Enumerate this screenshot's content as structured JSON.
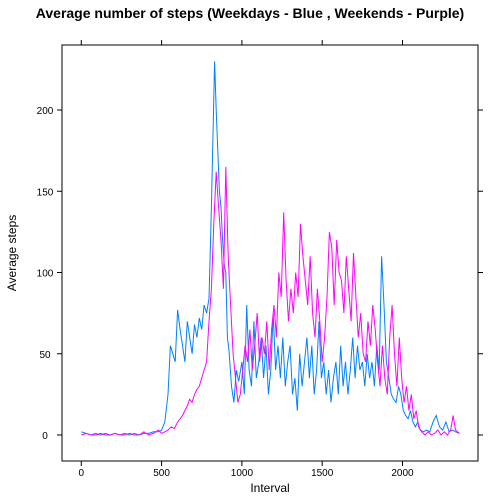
{
  "chart_data": {
    "type": "line",
    "title": "Average number of steps (Weekdays - Blue , Weekends - Purple)",
    "xlabel": "Interval",
    "ylabel": "Average steps",
    "xlim": [
      -120,
      2470
    ],
    "ylim": [
      -16,
      240
    ],
    "x_ticks": [
      0,
      500,
      1000,
      1500,
      2000
    ],
    "y_ticks": [
      0,
      50,
      100,
      150,
      200
    ],
    "grid": false,
    "legend": "none",
    "series": [
      {
        "color": "#0080ff",
        "points": [
          [
            0,
            2
          ],
          [
            30,
            1
          ],
          [
            60,
            0
          ],
          [
            90,
            1
          ],
          [
            120,
            0
          ],
          [
            150,
            1
          ],
          [
            180,
            0
          ],
          [
            210,
            1
          ],
          [
            240,
            0
          ],
          [
            270,
            1
          ],
          [
            300,
            0
          ],
          [
            330,
            1
          ],
          [
            360,
            0
          ],
          [
            390,
            1
          ],
          [
            420,
            1
          ],
          [
            450,
            2
          ],
          [
            480,
            2
          ],
          [
            500,
            3
          ],
          [
            520,
            8
          ],
          [
            540,
            25
          ],
          [
            555,
            55
          ],
          [
            570,
            50
          ],
          [
            585,
            45
          ],
          [
            600,
            77
          ],
          [
            615,
            65
          ],
          [
            630,
            55
          ],
          [
            645,
            45
          ],
          [
            660,
            70
          ],
          [
            675,
            60
          ],
          [
            690,
            50
          ],
          [
            705,
            68
          ],
          [
            720,
            60
          ],
          [
            735,
            72
          ],
          [
            750,
            65
          ],
          [
            765,
            80
          ],
          [
            780,
            75
          ],
          [
            795,
            84
          ],
          [
            810,
            140
          ],
          [
            820,
            185
          ],
          [
            830,
            230
          ],
          [
            840,
            200
          ],
          [
            850,
            175
          ],
          [
            860,
            150
          ],
          [
            870,
            140
          ],
          [
            880,
            120
          ],
          [
            890,
            105
          ],
          [
            900,
            100
          ],
          [
            910,
            60
          ],
          [
            920,
            52
          ],
          [
            935,
            30
          ],
          [
            950,
            20
          ],
          [
            965,
            40
          ],
          [
            980,
            33
          ],
          [
            1000,
            45
          ],
          [
            1015,
            25
          ],
          [
            1030,
            80
          ],
          [
            1045,
            40
          ],
          [
            1060,
            30
          ],
          [
            1075,
            70
          ],
          [
            1090,
            35
          ],
          [
            1105,
            45
          ],
          [
            1120,
            60
          ],
          [
            1135,
            35
          ],
          [
            1150,
            55
          ],
          [
            1165,
            25
          ],
          [
            1180,
            40
          ],
          [
            1195,
            75
          ],
          [
            1210,
            40
          ],
          [
            1225,
            55
          ],
          [
            1240,
            35
          ],
          [
            1255,
            60
          ],
          [
            1270,
            30
          ],
          [
            1285,
            45
          ],
          [
            1300,
            55
          ],
          [
            1315,
            25
          ],
          [
            1330,
            35
          ],
          [
            1345,
            15
          ],
          [
            1360,
            50
          ],
          [
            1375,
            30
          ],
          [
            1390,
            45
          ],
          [
            1405,
            60
          ],
          [
            1420,
            35
          ],
          [
            1435,
            55
          ],
          [
            1450,
            25
          ],
          [
            1465,
            40
          ],
          [
            1480,
            70
          ],
          [
            1495,
            35
          ],
          [
            1510,
            45
          ],
          [
            1525,
            25
          ],
          [
            1540,
            40
          ],
          [
            1555,
            20
          ],
          [
            1570,
            35
          ],
          [
            1585,
            45
          ],
          [
            1600,
            25
          ],
          [
            1615,
            55
          ],
          [
            1630,
            30
          ],
          [
            1645,
            45
          ],
          [
            1660,
            25
          ],
          [
            1675,
            40
          ],
          [
            1690,
            60
          ],
          [
            1705,
            35
          ],
          [
            1720,
            55
          ],
          [
            1735,
            40
          ],
          [
            1750,
            45
          ],
          [
            1765,
            30
          ],
          [
            1780,
            50
          ],
          [
            1795,
            35
          ],
          [
            1810,
            45
          ],
          [
            1825,
            30
          ],
          [
            1840,
            55
          ],
          [
            1855,
            40
          ],
          [
            1870,
            110
          ],
          [
            1885,
            80
          ],
          [
            1900,
            45
          ],
          [
            1915,
            35
          ],
          [
            1930,
            25
          ],
          [
            1945,
            22
          ],
          [
            1960,
            20
          ],
          [
            1975,
            30
          ],
          [
            1990,
            25
          ],
          [
            2005,
            15
          ],
          [
            2020,
            12
          ],
          [
            2035,
            10
          ],
          [
            2050,
            15
          ],
          [
            2065,
            8
          ],
          [
            2080,
            5
          ],
          [
            2095,
            8
          ],
          [
            2110,
            3
          ],
          [
            2130,
            2
          ],
          [
            2150,
            3
          ],
          [
            2170,
            2
          ],
          [
            2190,
            8
          ],
          [
            2210,
            12
          ],
          [
            2230,
            5
          ],
          [
            2250,
            3
          ],
          [
            2270,
            8
          ],
          [
            2290,
            2
          ],
          [
            2310,
            3
          ],
          [
            2330,
            2
          ],
          [
            2355,
            1
          ]
        ]
      },
      {
        "color": "#ff00ff",
        "points": [
          [
            0,
            0
          ],
          [
            30,
            1
          ],
          [
            60,
            0
          ],
          [
            90,
            0
          ],
          [
            120,
            1
          ],
          [
            150,
            0
          ],
          [
            180,
            0
          ],
          [
            210,
            1
          ],
          [
            240,
            0
          ],
          [
            270,
            0
          ],
          [
            300,
            1
          ],
          [
            330,
            0
          ],
          [
            360,
            0
          ],
          [
            390,
            2
          ],
          [
            420,
            0
          ],
          [
            450,
            1
          ],
          [
            480,
            3
          ],
          [
            500,
            1
          ],
          [
            520,
            2
          ],
          [
            540,
            3
          ],
          [
            560,
            5
          ],
          [
            580,
            4
          ],
          [
            600,
            8
          ],
          [
            615,
            10
          ],
          [
            630,
            12
          ],
          [
            645,
            15
          ],
          [
            660,
            18
          ],
          [
            675,
            22
          ],
          [
            690,
            20
          ],
          [
            705,
            25
          ],
          [
            720,
            28
          ],
          [
            735,
            30
          ],
          [
            750,
            35
          ],
          [
            765,
            40
          ],
          [
            780,
            45
          ],
          [
            795,
            70
          ],
          [
            810,
            90
          ],
          [
            825,
            130
          ],
          [
            840,
            162
          ],
          [
            855,
            140
          ],
          [
            870,
            120
          ],
          [
            885,
            90
          ],
          [
            900,
            165
          ],
          [
            915,
            110
          ],
          [
            930,
            80
          ],
          [
            945,
            50
          ],
          [
            960,
            35
          ],
          [
            975,
            20
          ],
          [
            990,
            25
          ],
          [
            1005,
            40
          ],
          [
            1020,
            55
          ],
          [
            1035,
            45
          ],
          [
            1050,
            65
          ],
          [
            1065,
            40
          ],
          [
            1080,
            55
          ],
          [
            1095,
            75
          ],
          [
            1110,
            45
          ],
          [
            1125,
            60
          ],
          [
            1140,
            50
          ],
          [
            1155,
            70
          ],
          [
            1170,
            40
          ],
          [
            1185,
            65
          ],
          [
            1200,
            80
          ],
          [
            1215,
            60
          ],
          [
            1230,
            100
          ],
          [
            1245,
            85
          ],
          [
            1260,
            137
          ],
          [
            1275,
            95
          ],
          [
            1290,
            70
          ],
          [
            1305,
            90
          ],
          [
            1320,
            75
          ],
          [
            1335,
            100
          ],
          [
            1350,
            85
          ],
          [
            1365,
            130
          ],
          [
            1380,
            110
          ],
          [
            1395,
            95
          ],
          [
            1410,
            80
          ],
          [
            1425,
            110
          ],
          [
            1440,
            75
          ],
          [
            1455,
            60
          ],
          [
            1470,
            90
          ],
          [
            1485,
            70
          ],
          [
            1500,
            45
          ],
          [
            1515,
            60
          ],
          [
            1530,
            85
          ],
          [
            1545,
            125
          ],
          [
            1560,
            115
          ],
          [
            1575,
            80
          ],
          [
            1590,
            120
          ],
          [
            1605,
            100
          ],
          [
            1620,
            95
          ],
          [
            1635,
            75
          ],
          [
            1650,
            110
          ],
          [
            1665,
            90
          ],
          [
            1680,
            70
          ],
          [
            1695,
            112
          ],
          [
            1710,
            85
          ],
          [
            1725,
            60
          ],
          [
            1740,
            75
          ],
          [
            1755,
            50
          ],
          [
            1770,
            45
          ],
          [
            1785,
            70
          ],
          [
            1800,
            55
          ],
          [
            1815,
            80
          ],
          [
            1830,
            65
          ],
          [
            1845,
            45
          ],
          [
            1860,
            30
          ],
          [
            1875,
            55
          ],
          [
            1890,
            35
          ],
          [
            1905,
            25
          ],
          [
            1920,
            60
          ],
          [
            1935,
            80
          ],
          [
            1950,
            50
          ],
          [
            1965,
            30
          ],
          [
            1980,
            60
          ],
          [
            1995,
            35
          ],
          [
            2010,
            20
          ],
          [
            2025,
            30
          ],
          [
            2040,
            15
          ],
          [
            2055,
            25
          ],
          [
            2070,
            10
          ],
          [
            2085,
            15
          ],
          [
            2100,
            5
          ],
          [
            2120,
            2
          ],
          [
            2140,
            0
          ],
          [
            2160,
            2
          ],
          [
            2180,
            0
          ],
          [
            2200,
            1
          ],
          [
            2220,
            3
          ],
          [
            2240,
            0
          ],
          [
            2260,
            2
          ],
          [
            2280,
            0
          ],
          [
            2300,
            3
          ],
          [
            2315,
            12
          ],
          [
            2330,
            3
          ],
          [
            2355,
            1
          ]
        ]
      }
    ]
  }
}
